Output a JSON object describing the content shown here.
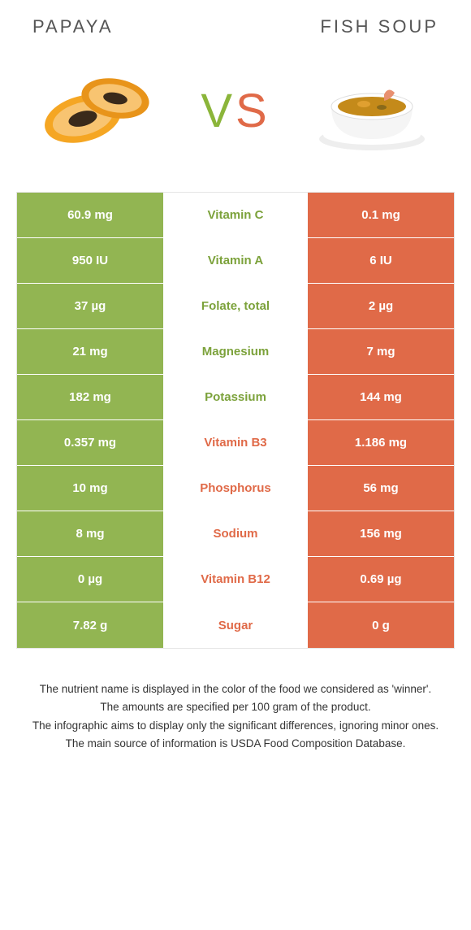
{
  "header": {
    "left_title": "Papaya",
    "right_title": "Fish soup"
  },
  "vs": {
    "v": "V",
    "s": "S"
  },
  "colors": {
    "green": "#92b552",
    "green_text": "#7ca23b",
    "orange": "#e06a48",
    "row_border": "#ffffff",
    "table_border": "#e5e5e5",
    "body_text": "#333333"
  },
  "table": {
    "rows": [
      {
        "left": "60.9 mg",
        "mid": "Vitamin C",
        "right": "0.1 mg",
        "winner": "left"
      },
      {
        "left": "950 IU",
        "mid": "Vitamin A",
        "right": "6 IU",
        "winner": "left"
      },
      {
        "left": "37 µg",
        "mid": "Folate, total",
        "right": "2 µg",
        "winner": "left"
      },
      {
        "left": "21 mg",
        "mid": "Magnesium",
        "right": "7 mg",
        "winner": "left"
      },
      {
        "left": "182 mg",
        "mid": "Potassium",
        "right": "144 mg",
        "winner": "left"
      },
      {
        "left": "0.357 mg",
        "mid": "Vitamin B3",
        "right": "1.186 mg",
        "winner": "right"
      },
      {
        "left": "10 mg",
        "mid": "Phosphorus",
        "right": "56 mg",
        "winner": "right"
      },
      {
        "left": "8 mg",
        "mid": "Sodium",
        "right": "156 mg",
        "winner": "right"
      },
      {
        "left": "0 µg",
        "mid": "Vitamin B12",
        "right": "0.69 µg",
        "winner": "right"
      },
      {
        "left": "7.82 g",
        "mid": "Sugar",
        "right": "0 g",
        "winner": "right"
      }
    ]
  },
  "footer": {
    "line1": "The nutrient name is displayed in the color of the food we considered as 'winner'.",
    "line2": "The amounts are specified per 100 gram of the product.",
    "line3": "The infographic aims to display only the significant differences, ignoring minor ones.",
    "line4": "The main source of information is USDA Food Composition Database."
  }
}
